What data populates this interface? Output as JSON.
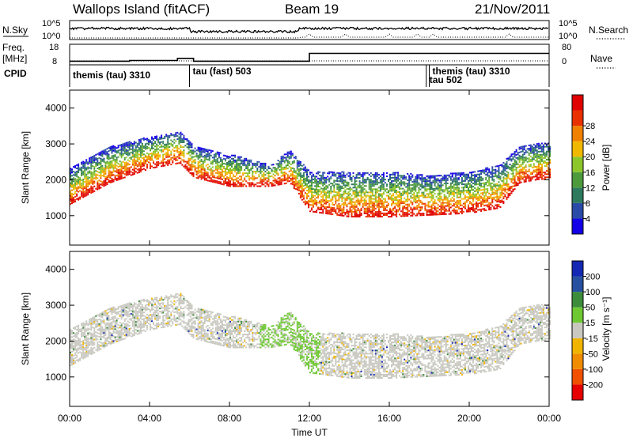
{
  "header": {
    "station": "Wallops Island (fitACF)",
    "beam": "Beam 19",
    "date": "21/Nov/2011"
  },
  "left_labels": {
    "nsky": "N.Sky",
    "freq_top": "Freq.",
    "freq_unit": "[MHz]",
    "cpid": "CPID"
  },
  "right_labels": {
    "nsearch": "N.Search",
    "nave": "Nave"
  },
  "noise_axis": {
    "left_ticks": [
      "10^5",
      "10^0"
    ],
    "right_ticks": [
      "10^5",
      "10^0"
    ]
  },
  "freq_axis": {
    "left_ticks": [
      "18",
      "8"
    ],
    "right_ticks": [
      "80",
      "0"
    ]
  },
  "cpid_modes": [
    {
      "label": "themis (tau) 3310",
      "start_h": 0.0
    },
    {
      "label": "tau (fast) 503",
      "start_h": 6.0
    },
    {
      "label": "tau 502",
      "start_h": 17.85
    },
    {
      "label": "themis (tau) 3310",
      "start_h": 18.0
    }
  ],
  "panels": {
    "power": {
      "ylabel": "Slant Range [km]",
      "cbar_label": "Power [dB]"
    },
    "velocity": {
      "ylabel": "Slant Range [km]",
      "cbar_label": "Velocity [m s⁻¹]"
    }
  },
  "xlabel": "Time UT",
  "chart_data": {
    "type": "heatmap",
    "x_range_hours": [
      0,
      24
    ],
    "x_ticks": [
      "00:00",
      "04:00",
      "08:00",
      "12:00",
      "16:00",
      "20:00",
      "00:00"
    ],
    "y_range_km": [
      180,
      4500
    ],
    "y_ticks": [
      1000,
      2000,
      3000,
      4000
    ],
    "power_colorbar": {
      "ticks": [
        "4",
        "8",
        "12",
        "16",
        "20",
        "24",
        "28"
      ],
      "colors": [
        "#1400e6",
        "#2a4aa8",
        "#2e7a5e",
        "#4c9a3c",
        "#8cc62a",
        "#f0b800",
        "#f08000",
        "#e83000",
        "#e00000"
      ]
    },
    "velocity_colorbar": {
      "ticks": [
        "200",
        "100",
        "50",
        "15",
        "-15",
        "-50",
        "-100",
        "-200"
      ],
      "colors": [
        "#1428b4",
        "#2850a0",
        "#3c8c3c",
        "#6ec832",
        "#c8c8c0",
        "#f0b400",
        "#f08c00",
        "#f05000",
        "#e60000"
      ]
    },
    "echo_bands": [
      {
        "name": "ionospheric",
        "time_h": [
          0.0,
          2.0,
          4.0,
          5.5,
          6.2,
          8.0,
          10.0,
          11.0,
          12.0,
          14.0,
          16.0,
          18.0,
          20.0,
          21.5,
          22.5,
          23.5
        ],
        "lower_km": [
          1300,
          1900,
          2300,
          2450,
          2050,
          1800,
          1800,
          1900,
          1100,
          950,
          950,
          1000,
          1050,
          1200,
          1900,
          2000
        ],
        "upper_km": [
          2300,
          2900,
          3200,
          3350,
          2900,
          2700,
          2400,
          2800,
          2200,
          2200,
          2200,
          2100,
          2200,
          2400,
          2900,
          3000
        ]
      }
    ],
    "noise_search_trend": "low until 11:00, elevated 11:30-22:00",
    "freq_mhz_steps": [
      {
        "start_h": 0.0,
        "value": 10.0
      },
      {
        "start_h": 3.0,
        "value": 10.5
      },
      {
        "start_h": 5.4,
        "value": 12.0
      },
      {
        "start_h": 6.2,
        "value": 10.0
      },
      {
        "start_h": 12.0,
        "value": 15.5
      },
      {
        "start_h": 18.0,
        "value": 15.5
      },
      {
        "start_h": 23.0,
        "value": 15.5
      }
    ]
  }
}
